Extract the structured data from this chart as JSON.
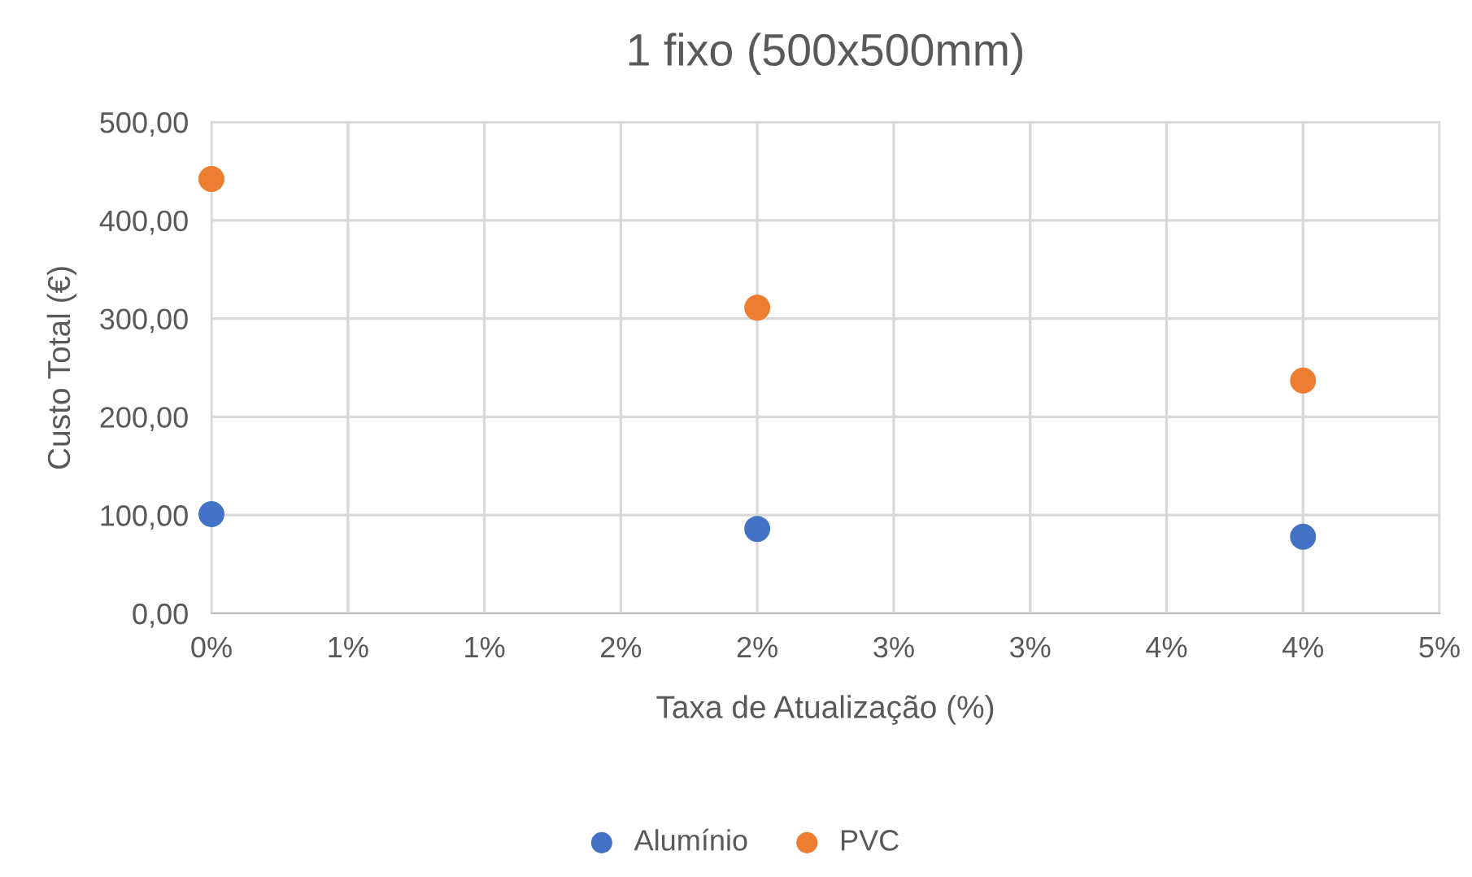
{
  "chart_data": {
    "type": "scatter",
    "title": "1 fixo (500x500mm)",
    "xlabel": "Taxa de Atualização (%)",
    "ylabel": "Custo Total (€)",
    "x": [
      0,
      2,
      4
    ],
    "series": [
      {
        "name": "Alumínio",
        "color": "#4472c4",
        "values": [
          101,
          86,
          78
        ]
      },
      {
        "name": "PVC",
        "color": "#ed7d31",
        "values": [
          442,
          311,
          237
        ]
      }
    ],
    "xlim": [
      0,
      4.5
    ],
    "xticks": [
      {
        "value": 0,
        "label": "0%"
      },
      {
        "value": 0.5,
        "label": "1%"
      },
      {
        "value": 1,
        "label": "1%"
      },
      {
        "value": 1.5,
        "label": "2%"
      },
      {
        "value": 2,
        "label": "2%"
      },
      {
        "value": 2.5,
        "label": "3%"
      },
      {
        "value": 3,
        "label": "3%"
      },
      {
        "value": 3.5,
        "label": "4%"
      },
      {
        "value": 4,
        "label": "4%"
      },
      {
        "value": 4.5,
        "label": "5%"
      }
    ],
    "ylim": [
      0,
      500
    ],
    "yticks": [
      {
        "value": 0,
        "label": "0,00"
      },
      {
        "value": 100,
        "label": "100,00"
      },
      {
        "value": 200,
        "label": "200,00"
      },
      {
        "value": 300,
        "label": "300,00"
      },
      {
        "value": 400,
        "label": "400,00"
      },
      {
        "value": 500,
        "label": "500,00"
      }
    ],
    "grid": true,
    "legend": "bottom",
    "marker": "circle"
  }
}
